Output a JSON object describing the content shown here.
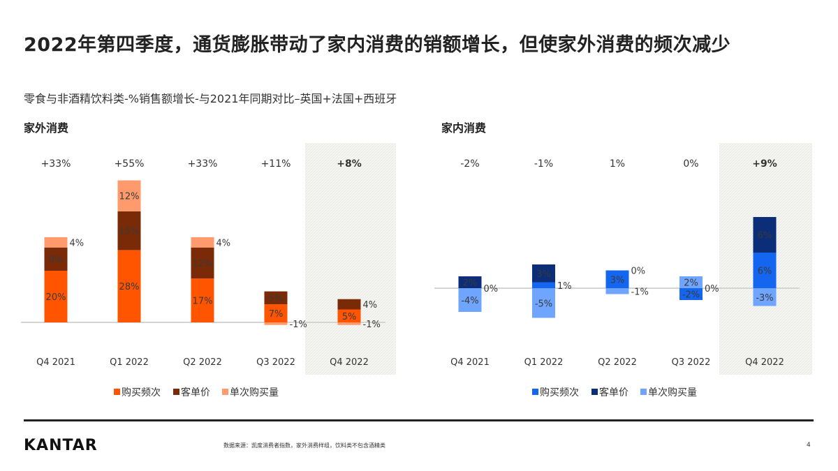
{
  "title": "2022年第四季度，通货膨胀带动了家内消费的销额增长，但使家外消费的频次减少",
  "subtitle": "零食与非酒精饮料类-%销售额增长-与2021年同期对比–英国+法国+西班牙",
  "footer": {
    "logo": "KANTAR",
    "source": "数据来源：凯度消费者指数，家外消费样组，饮料类不包含酒精类",
    "page": "4"
  },
  "chart_data": [
    {
      "type": "bar",
      "stacked": true,
      "title": "家外消费",
      "categories": [
        "Q4 2021",
        "Q1 2022",
        "Q2 2022",
        "Q3 2022",
        "Q4 2022"
      ],
      "totals": [
        "+33%",
        "+55%",
        "+33%",
        "+11%",
        "+8%"
      ],
      "highlight": "Q4 2022",
      "series": [
        {
          "name": "购买频次",
          "color": "#FF5500",
          "values": [
            20,
            28,
            17,
            7,
            5
          ]
        },
        {
          "name": "客单价",
          "color": "#7A2A06",
          "values": [
            9,
            15,
            12,
            5,
            4
          ]
        },
        {
          "name": "单次购买量",
          "color": "#FF9A6C",
          "values": [
            4,
            12,
            4,
            -1,
            -1
          ]
        }
      ]
    },
    {
      "type": "bar",
      "stacked": true,
      "title": "家内消费",
      "categories": [
        "Q4 2021",
        "Q1 2022",
        "Q2 2022",
        "Q3 2022",
        "Q4 2022"
      ],
      "totals": [
        "-2%",
        "-1%",
        "1%",
        "0%",
        "+9%"
      ],
      "highlight": "Q4 2022",
      "series": [
        {
          "name": "购买频次",
          "color": "#1466F0",
          "values": [
            0,
            1,
            3,
            -2,
            6
          ]
        },
        {
          "name": "客单价",
          "color": "#0C2D78",
          "values": [
            2,
            3,
            0,
            0,
            6
          ]
        },
        {
          "name": "单次购买量",
          "color": "#6FA4FF",
          "values": [
            -4,
            -5,
            -1,
            2,
            -3
          ]
        }
      ]
    }
  ]
}
